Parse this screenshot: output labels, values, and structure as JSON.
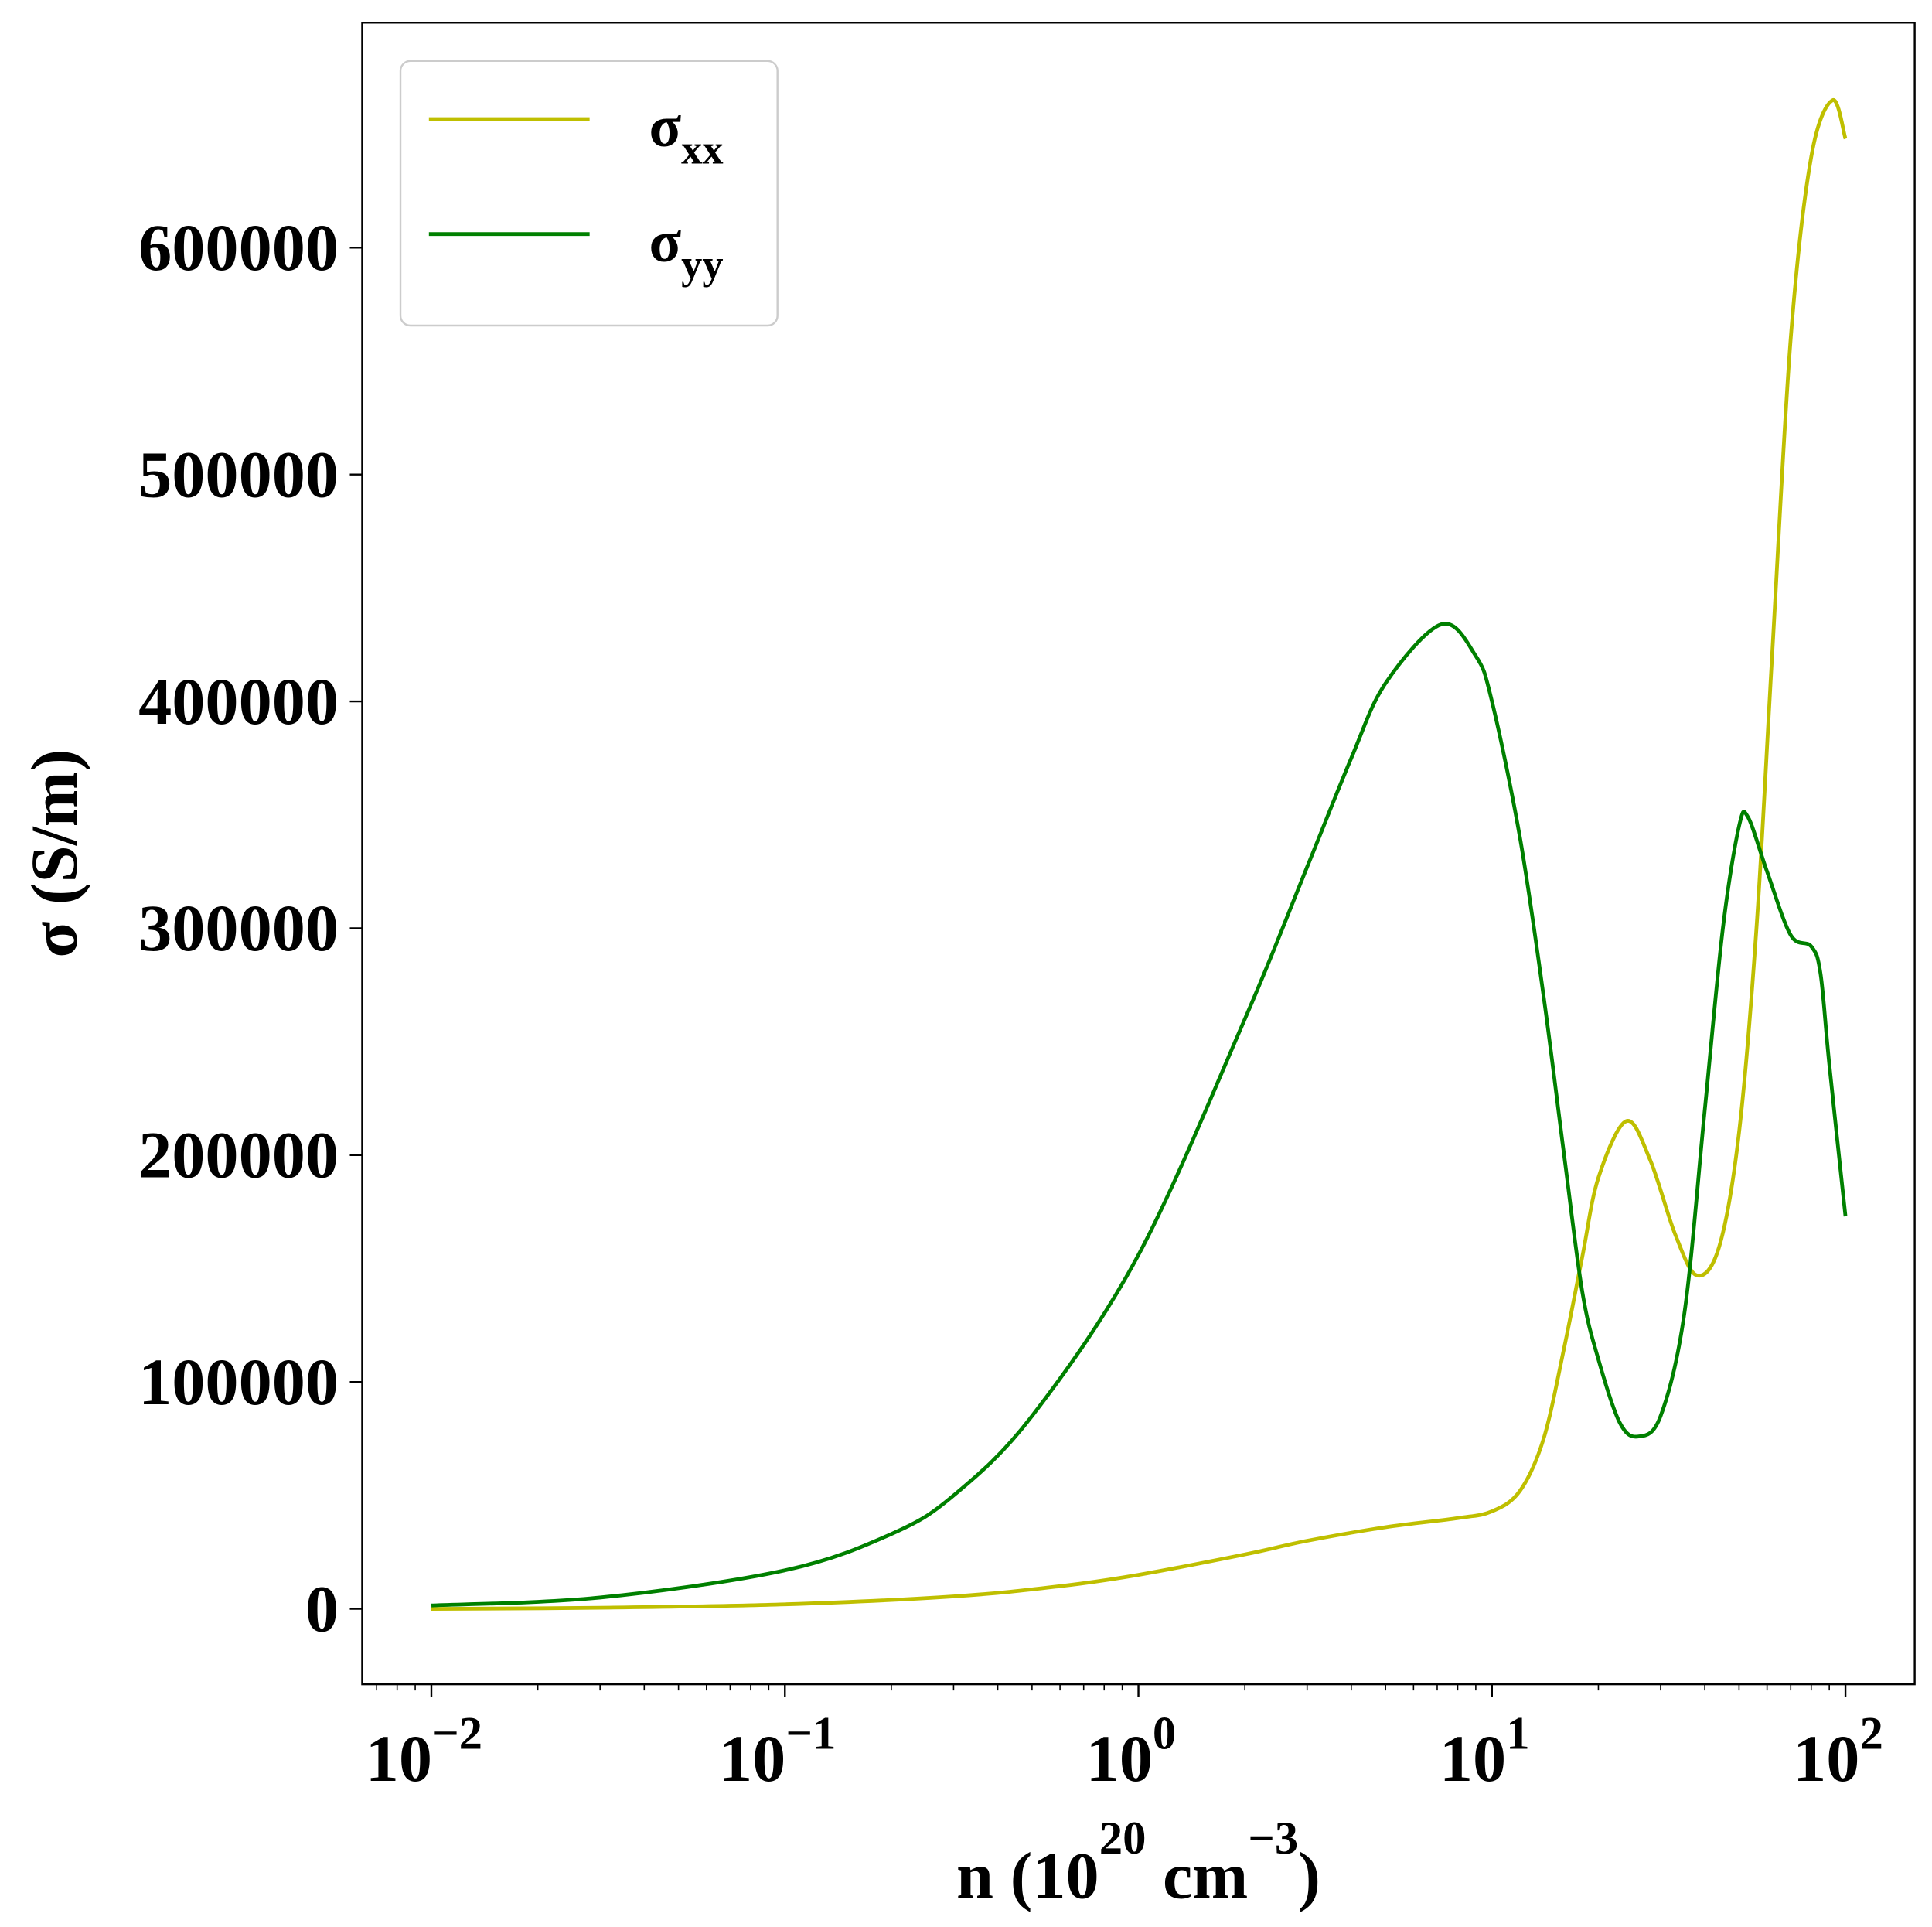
{
  "chart_data": {
    "type": "line",
    "title": "",
    "xlabel": "n (10^20 cm^-3)",
    "xlabel_parts": {
      "base": "n (10",
      "exp1": "20",
      "mid": " cm",
      "exp2": "−3",
      "end": ")"
    },
    "ylabel": "σ (S/m)",
    "xscale": "log",
    "xlim": [
      0.0063,
      160
    ],
    "ylim": [
      -32000,
      695000
    ],
    "grid": false,
    "legend_position": "top-left",
    "x_ticks": [
      {
        "value": 0.01,
        "base": "10",
        "exp": "−2"
      },
      {
        "value": 0.1,
        "base": "10",
        "exp": "−1"
      },
      {
        "value": 1,
        "base": "10",
        "exp": "0"
      },
      {
        "value": 10,
        "base": "10",
        "exp": "1"
      },
      {
        "value": 100,
        "base": "10",
        "exp": "2"
      }
    ],
    "y_ticks": [
      "0",
      "100000",
      "200000",
      "300000",
      "400000",
      "500000",
      "600000"
    ],
    "series": [
      {
        "name": "σxx",
        "label_main": "σ",
        "label_sub": "xx",
        "color": "#bfbf00",
        "x": [
          0.01,
          0.03,
          0.1,
          0.3,
          0.6,
          1,
          2,
          3,
          5,
          8,
          10,
          12,
          14,
          16,
          18,
          20,
          24,
          28,
          33,
          38,
          44,
          50,
          56,
          62,
          70,
          80,
          92,
          100
        ],
        "y": [
          0,
          500,
          2000,
          5500,
          10000,
          15000,
          24000,
          30000,
          36000,
          40000,
          43000,
          52000,
          75000,
          115000,
          155000,
          190000,
          215000,
          198000,
          165000,
          147000,
          160000,
          210000,
          300000,
          420000,
          560000,
          640000,
          665000,
          648000
        ]
      },
      {
        "name": "σyy",
        "label_main": "σ",
        "label_sub": "yy",
        "color": "#008000",
        "x": [
          0.01,
          0.03,
          0.1,
          0.2,
          0.3,
          0.5,
          1,
          2,
          3,
          4,
          5,
          7.2,
          9,
          10,
          12,
          14,
          16,
          18,
          20,
          23,
          26,
          30,
          35,
          40,
          45,
          50,
          53,
          60,
          70,
          80,
          85,
          90,
          100
        ],
        "y": [
          1500,
          5000,
          17000,
          33000,
          50000,
          85000,
          156000,
          260000,
          327000,
          375000,
          408000,
          434000,
          420000,
          400000,
          340000,
          270000,
          200000,
          140000,
          110000,
          82000,
          76000,
          85000,
          130000,
          220000,
          300000,
          345000,
          349000,
          325000,
          297000,
          292000,
          280000,
          240000,
          173000
        ]
      }
    ]
  }
}
